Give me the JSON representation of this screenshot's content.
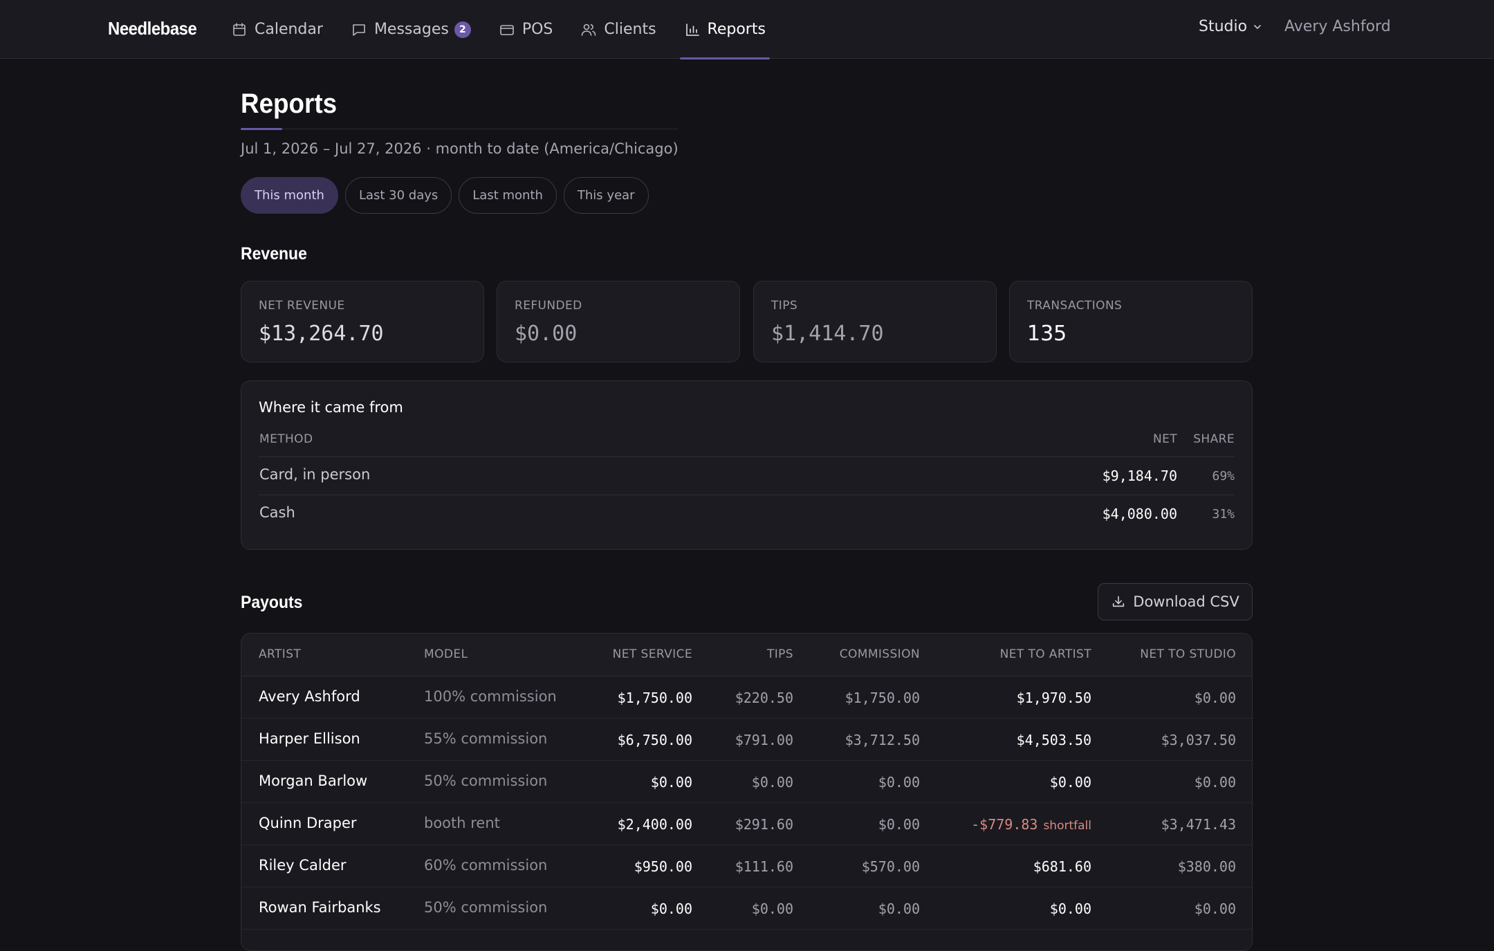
{
  "app": {
    "brand": "Needlebase"
  },
  "nav": {
    "items": [
      {
        "label": "Calendar",
        "icon": "calendar-icon"
      },
      {
        "label": "Messages",
        "icon": "message-icon",
        "badge": "2"
      },
      {
        "label": "POS",
        "icon": "card-icon"
      },
      {
        "label": "Clients",
        "icon": "users-icon"
      },
      {
        "label": "Reports",
        "icon": "bar-chart-icon",
        "active": true
      }
    ],
    "studio_label": "Studio",
    "user_name": "Avery Ashford"
  },
  "page": {
    "title": "Reports",
    "date_range": "Jul 1, 2026 – Jul 27, 2026 · month to date (America/Chicago)",
    "ranges": [
      {
        "label": "This month",
        "active": true
      },
      {
        "label": "Last 30 days"
      },
      {
        "label": "Last month"
      },
      {
        "label": "This year"
      }
    ]
  },
  "revenue": {
    "title": "Revenue",
    "stats": [
      {
        "label": "NET REVENUE",
        "value": "$13,264.70"
      },
      {
        "label": "REFUNDED",
        "value": "$0.00"
      },
      {
        "label": "TIPS",
        "value": "$1,414.70"
      },
      {
        "label": "TRANSACTIONS",
        "value": "135"
      }
    ],
    "sources": {
      "title": "Where it came from",
      "headers": {
        "method": "METHOD",
        "net": "NET",
        "share": "SHARE"
      },
      "rows": [
        {
          "method": "Card, in person",
          "net": "$9,184.70",
          "share": "69%"
        },
        {
          "method": "Cash",
          "net": "$4,080.00",
          "share": "31%"
        }
      ]
    }
  },
  "payouts": {
    "title": "Payouts",
    "download_label": "Download CSV",
    "headers": {
      "artist": "ARTIST",
      "model": "MODEL",
      "net_service": "NET SERVICE",
      "tips": "TIPS",
      "commission": "COMMISSION",
      "net_to_artist": "NET TO ARTIST",
      "net_to_studio": "NET TO STUDIO"
    },
    "rows": [
      {
        "artist": "Avery Ashford",
        "model": "100% commission",
        "net_service": "$1,750.00",
        "tips": "$220.50",
        "commission": "$1,750.00",
        "net_to_artist": "$1,970.50",
        "net_to_studio": "$0.00"
      },
      {
        "artist": "Harper Ellison",
        "model": "55% commission",
        "net_service": "$6,750.00",
        "tips": "$791.00",
        "commission": "$3,712.50",
        "net_to_artist": "$4,503.50",
        "net_to_studio": "$3,037.50"
      },
      {
        "artist": "Morgan Barlow",
        "model": "50% commission",
        "net_service": "$0.00",
        "tips": "$0.00",
        "commission": "$0.00",
        "net_to_artist": "$0.00",
        "net_to_studio": "$0.00"
      },
      {
        "artist": "Quinn Draper",
        "model": "booth rent",
        "net_service": "$2,400.00",
        "tips": "$291.60",
        "commission": "$0.00",
        "net_to_artist": "-$779.83",
        "net_to_artist_note": "shortfall",
        "net_to_studio": "$3,471.43"
      },
      {
        "artist": "Riley Calder",
        "model": "60% commission",
        "net_service": "$950.00",
        "tips": "$111.60",
        "commission": "$570.00",
        "net_to_artist": "$681.60",
        "net_to_studio": "$380.00"
      },
      {
        "artist": "Rowan Fairbanks",
        "model": "50% commission",
        "net_service": "$0.00",
        "tips": "$0.00",
        "commission": "$0.00",
        "net_to_artist": "$0.00",
        "net_to_studio": "$0.00"
      }
    ]
  },
  "colors": {
    "accent": "#6b58a6",
    "background": "#131217",
    "card": "#1c1b21",
    "negative": "#d98a82"
  }
}
